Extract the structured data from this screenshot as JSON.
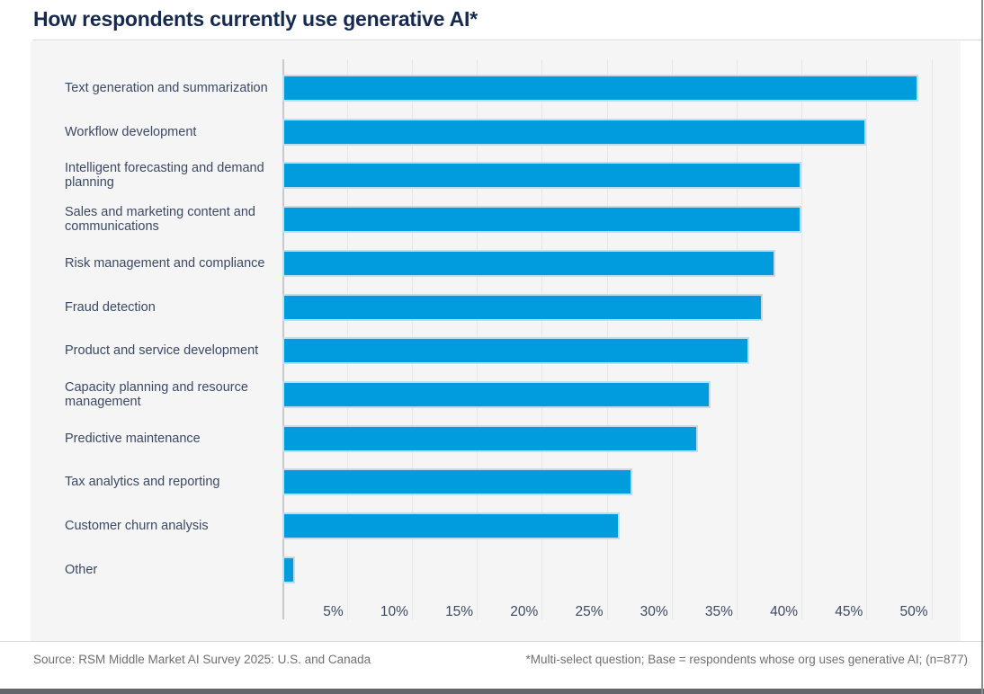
{
  "title": "How respondents currently use generative AI*",
  "footer": {
    "source": "Source: RSM Middle Market AI Survey 2025: U.S. and Canada",
    "note": "*Multi-select question; Base = respondents whose org uses generative AI; (n=877)"
  },
  "colors": {
    "bar": "#009CDE",
    "title": "#16294F",
    "label": "#3C4963",
    "panel": "#F5F5F6",
    "gridline": "#E6E6E8",
    "axis": "#C9C9CC",
    "footer_text": "#6F6F6F",
    "bottom_bar": "#63666A",
    "frame": "#8A8D90"
  },
  "chart_data": {
    "type": "bar",
    "orientation": "horizontal",
    "title": "How respondents currently use generative AI*",
    "categories": [
      "Text generation and summarization",
      "Workflow development",
      "Intelligent forecasting and demand planning",
      "Sales and marketing content and communications",
      "Risk management and compliance",
      "Fraud detection",
      "Product and service development",
      "Capacity planning and resource management",
      "Predictive maintenance",
      "Tax analytics and reporting",
      "Customer churn analysis",
      "Other"
    ],
    "values": [
      49,
      45,
      40,
      40,
      38,
      37,
      36,
      33,
      32,
      27,
      26,
      1
    ],
    "unit": "%",
    "xlabel": "",
    "ylabel": "",
    "xlim": [
      0,
      50
    ],
    "xtick_step": 5,
    "xtick_labels": [
      "5%",
      "10%",
      "15%",
      "20%",
      "25%",
      "30%",
      "35%",
      "40%",
      "45%",
      "50%"
    ],
    "grid": true,
    "legend": false
  }
}
